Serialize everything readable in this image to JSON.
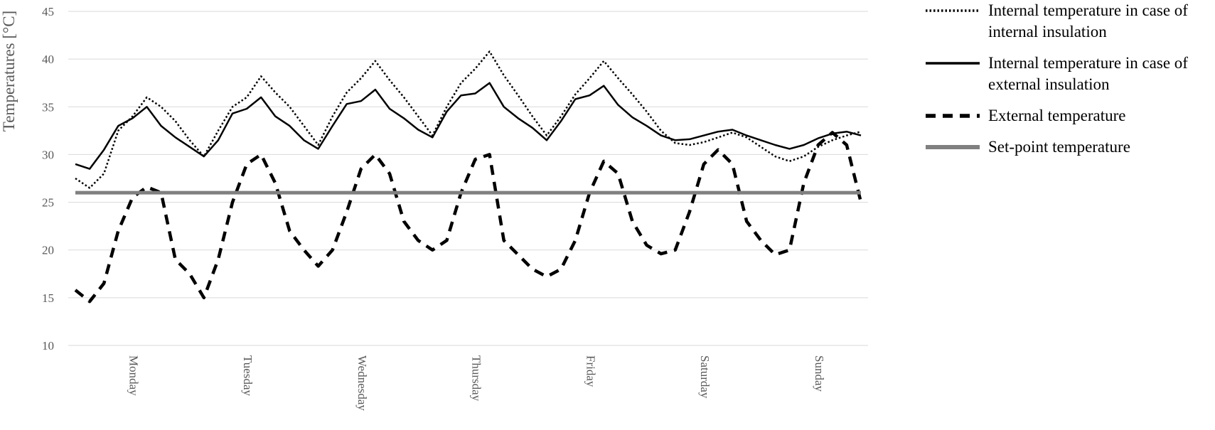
{
  "chart_data": {
    "type": "line",
    "y_label": "Temperatures [°C]",
    "categories": [
      null,
      null,
      null,
      null,
      "Monday",
      null,
      null,
      null,
      null,
      null,
      null,
      null,
      "Tuesday",
      null,
      null,
      null,
      null,
      null,
      null,
      null,
      "Wednesday",
      null,
      null,
      null,
      null,
      null,
      null,
      null,
      "Thursday",
      null,
      null,
      null,
      null,
      null,
      null,
      null,
      "Friday",
      null,
      null,
      null,
      null,
      null,
      null,
      null,
      "Saturday",
      null,
      null,
      null,
      null,
      null,
      null,
      null,
      "Sunday",
      null,
      null,
      null
    ],
    "series": [
      {
        "name": "Internal temperature in case of internal insulation",
        "color": "#000000",
        "style": "dotted",
        "values": [
          27.5,
          26.5,
          28,
          32.5,
          34,
          36,
          35,
          33.5,
          31.5,
          29.8,
          32.5,
          35,
          36,
          38.2,
          36.5,
          35,
          33,
          31,
          34,
          36.5,
          38,
          39.8,
          37.8,
          36,
          34,
          32,
          35,
          37.5,
          39,
          40.8,
          38.3,
          36.2,
          34,
          32,
          34,
          36.3,
          38,
          39.8,
          38,
          36.3,
          34.5,
          32.5,
          31.2,
          31,
          31.3,
          31.8,
          32.3,
          31.8,
          30.8,
          29.8,
          29.3,
          29.8,
          30.8,
          31.5,
          32,
          32.4
        ]
      },
      {
        "name": "Internal temperature in case of external insulation",
        "color": "#000000",
        "style": "solid",
        "values": [
          29,
          28.5,
          30.5,
          33,
          33.8,
          35,
          33,
          31.8,
          30.8,
          29.8,
          31.5,
          34.3,
          34.8,
          36,
          34,
          33,
          31.5,
          30.6,
          33,
          35.3,
          35.6,
          36.8,
          34.8,
          33.8,
          32.6,
          31.8,
          34.5,
          36.2,
          36.4,
          37.5,
          35,
          33.8,
          32.8,
          31.5,
          33.5,
          35.8,
          36.2,
          37.2,
          35.2,
          33.9,
          33,
          32,
          31.5,
          31.6,
          32,
          32.4,
          32.6,
          32,
          31.5,
          31,
          30.6,
          31,
          31.7,
          32.2,
          32.4,
          32
        ]
      },
      {
        "name": "External temperature",
        "color": "#000000",
        "style": "dashed",
        "values": [
          15.8,
          14.6,
          16.5,
          22,
          25.5,
          26.6,
          26,
          19,
          17.5,
          15,
          19,
          25,
          29,
          30,
          27,
          22,
          20,
          18.3,
          20,
          24,
          28.5,
          30,
          28,
          23,
          21,
          20,
          21,
          26,
          29.5,
          30,
          21,
          19.5,
          18,
          17.2,
          18,
          21,
          26,
          29.3,
          28,
          23,
          20.5,
          19.6,
          20,
          24,
          29,
          30.5,
          29,
          23,
          21,
          19.5,
          20,
          27,
          31,
          32.3,
          31,
          25
        ]
      },
      {
        "name": "Set-point temperature",
        "color": "#808080",
        "style": "solid",
        "values": [
          26,
          26,
          26,
          26,
          26,
          26,
          26,
          26,
          26,
          26,
          26,
          26,
          26,
          26,
          26,
          26,
          26,
          26,
          26,
          26,
          26,
          26,
          26,
          26,
          26,
          26,
          26,
          26,
          26,
          26,
          26,
          26,
          26,
          26,
          26,
          26,
          26,
          26,
          26,
          26,
          26,
          26,
          26,
          26,
          26,
          26,
          26,
          26,
          26,
          26,
          26,
          26,
          26,
          26,
          26,
          26
        ]
      }
    ],
    "ylim": [
      10,
      45
    ],
    "yticks": [
      10,
      15,
      20,
      25,
      30,
      35,
      40,
      45
    ],
    "grid": true,
    "legend": "right"
  }
}
